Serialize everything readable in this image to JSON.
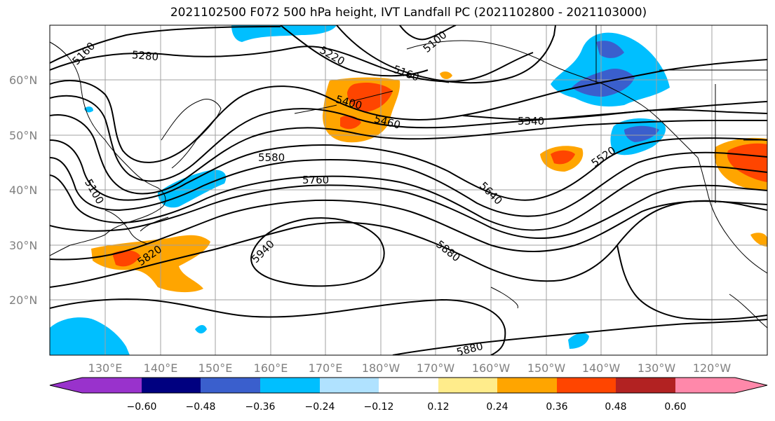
{
  "title": "2021102500 F072 500 hPa height, IVT Landfall PC (2021102800 - 2021103000)",
  "lat_labels": [
    "60°N",
    "50°N",
    "40°N",
    "30°N",
    "20°N"
  ],
  "lon_labels": [
    "130°E",
    "140°E",
    "150°E",
    "160°E",
    "170°E",
    "180°W",
    "170°W",
    "160°W",
    "150°W",
    "140°W",
    "130°W",
    "120°W"
  ],
  "contour_labels": [
    "5160",
    "5280",
    "5220",
    "5100",
    "5160",
    "5400",
    "5460",
    "5340",
    "5520",
    "5580",
    "5760",
    "5100",
    "5640",
    "5820",
    "5940",
    "5880",
    "5880"
  ],
  "colorbar": {
    "colors": [
      "#9932cc",
      "#000080",
      "#3a5fcd",
      "#00bfff",
      "#b0e2ff",
      "#ffffff",
      "#ffffff",
      "#ffec8b",
      "#ffa500",
      "#ff4500",
      "#b22222",
      "#ff88aa"
    ],
    "ticks": [
      "−0.60",
      "−0.48",
      "−0.36",
      "−0.24",
      "−0.12",
      "0.12",
      "0.24",
      "0.36",
      "0.48",
      "0.60"
    ]
  }
}
